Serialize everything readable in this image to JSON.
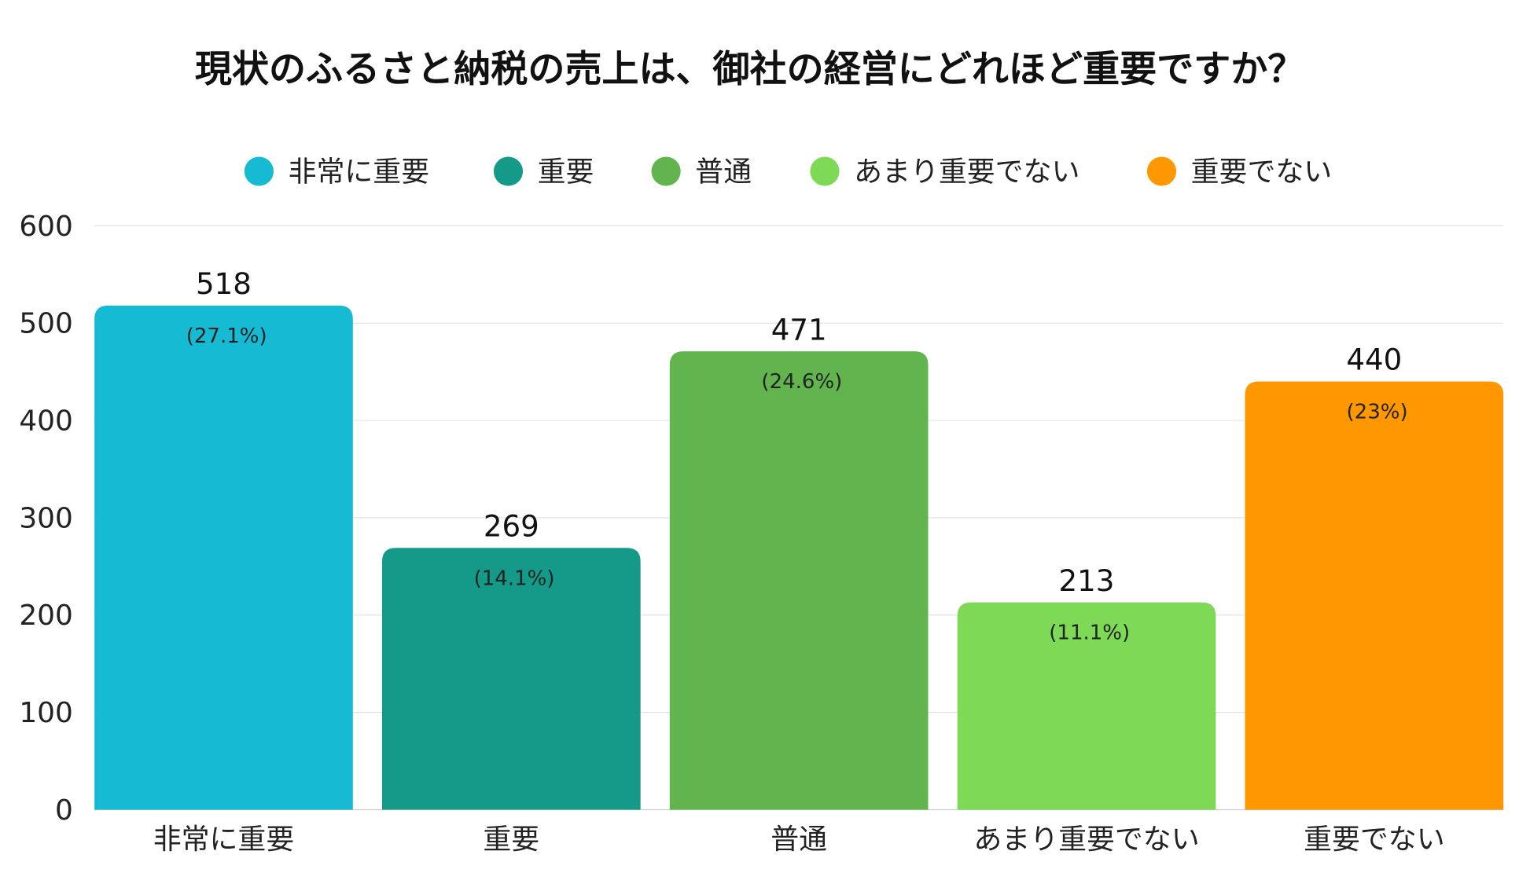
{
  "chart_data": {
    "type": "bar",
    "title": "現状のふるさと納税の売上は、御社の経営にどれほど重要ですか？",
    "categories": [
      "非常に重要",
      "重要",
      "普通",
      "あまり重要でない",
      "重要でない"
    ],
    "values": [
      518,
      269,
      471,
      213,
      440
    ],
    "percent_labels": [
      "(27.1%)",
      "(14.1%)",
      "(24.6%)",
      "(11.1%)",
      "(23%)"
    ],
    "colors": [
      "#17BAD3",
      "#159A8A",
      "#62B54E",
      "#7ED957",
      "#FF9800"
    ],
    "legend": {
      "placement": "top",
      "entries": [
        "非常に重要",
        "重要",
        "普通",
        "あまり重要でない",
        "重要でない"
      ]
    },
    "xlabel": "",
    "ylabel": "",
    "ylim": [
      0,
      600
    ],
    "yticks": [
      "0",
      "100",
      "200",
      "300",
      "400",
      "500",
      "600"
    ],
    "grid": true
  }
}
